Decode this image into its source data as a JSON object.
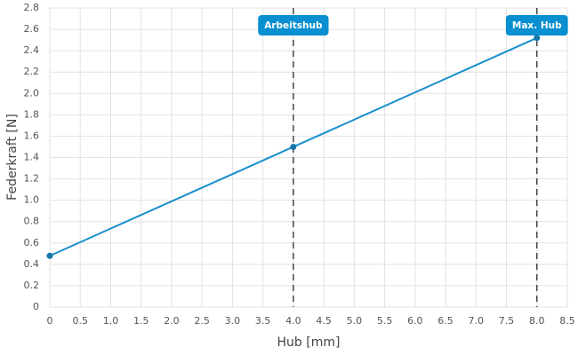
{
  "chart_data": {
    "type": "line",
    "x_label": "Hub [mm]",
    "y_label": "Federkraft [N]",
    "x": [
      0,
      4,
      8
    ],
    "series": [
      {
        "name": "Federkraft",
        "color": "#1a8fce",
        "values": [
          0.48,
          1.5,
          2.52
        ]
      }
    ],
    "xlim": [
      0,
      8.5
    ],
    "xticks": [
      0,
      0.5,
      {
        "value": 1,
        "label": "1.0"
      },
      1.5,
      {
        "value": 2,
        "label": "2.0"
      },
      2.5,
      {
        "value": 3,
        "label": "3.0"
      },
      3.5,
      {
        "value": 4,
        "label": "4.0"
      },
      4.5,
      {
        "value": 5,
        "label": "5.0"
      },
      5.5,
      {
        "value": 6,
        "label": "6.0"
      },
      6.5,
      {
        "value": 7,
        "label": "7.0"
      },
      7.5,
      {
        "value": 8,
        "label": "8.0"
      },
      8.5
    ],
    "ylim": [
      0,
      2.8
    ],
    "yticks": [
      0,
      0.2,
      0.4,
      0.6,
      0.8,
      {
        "value": 1,
        "label": "1.0"
      },
      1.2,
      1.4,
      1.6,
      1.8,
      {
        "value": 2,
        "label": "2.0"
      },
      2.2,
      2.4,
      2.6,
      2.8
    ],
    "grid": true,
    "annotations": [
      {
        "x": 4,
        "label": "Arbeitshub"
      },
      {
        "x": 8,
        "label": "Max. Hub"
      }
    ],
    "annotation_color": "#0a8fd0"
  }
}
